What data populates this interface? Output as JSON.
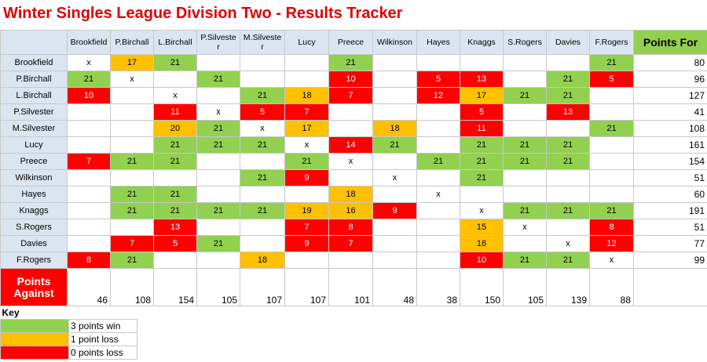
{
  "title": "Winter Singles League Division Two - Results Tracker",
  "table": {
    "columns": [
      "Brookfield",
      "P.Birchall",
      "L.Birchall",
      "P.Silvester",
      "M.Silvester",
      "Lucy",
      "Preece",
      "Wilkinson",
      "Hayes",
      "Knaggs",
      "S.Rogers",
      "Davies",
      "F.Rogers"
    ],
    "points_for_header": "Points For",
    "rows": [
      {
        "label": "Brookfield",
        "cells": [
          "x",
          17,
          21,
          null,
          null,
          null,
          21,
          null,
          null,
          null,
          null,
          null,
          21
        ],
        "fills": [
          null,
          "#ffc000",
          "#92d050",
          null,
          null,
          null,
          "#92d050",
          null,
          null,
          null,
          null,
          null,
          "#92d050"
        ],
        "points_for": 80
      },
      {
        "label": "P.Birchall",
        "cells": [
          21,
          "x",
          null,
          21,
          null,
          null,
          10,
          null,
          5,
          13,
          null,
          21,
          5
        ],
        "fills": [
          "#92d050",
          null,
          null,
          "#92d050",
          null,
          null,
          "#ff0000",
          null,
          "#ff0000",
          "#ff0000",
          null,
          "#92d050",
          "#ff0000"
        ],
        "points_for": 96
      },
      {
        "label": "L.Birchall",
        "cells": [
          10,
          null,
          "x",
          null,
          21,
          18,
          7,
          null,
          12,
          17,
          21,
          21,
          null
        ],
        "fills": [
          "#ff0000",
          null,
          null,
          null,
          "#92d050",
          "#ffc000",
          "#ff0000",
          null,
          "#ff0000",
          "#ffc000",
          "#92d050",
          "#92d050",
          null
        ],
        "points_for": 127
      },
      {
        "label": "P.Silvester",
        "cells": [
          null,
          null,
          11,
          "x",
          5,
          7,
          null,
          null,
          null,
          5,
          null,
          13,
          null
        ],
        "fills": [
          null,
          null,
          "#ff0000",
          null,
          "#ff0000",
          "#ff0000",
          null,
          null,
          null,
          "#ff0000",
          null,
          "#ff0000",
          null
        ],
        "points_for": 41
      },
      {
        "label": "M.Silvester",
        "cells": [
          null,
          null,
          20,
          21,
          "x",
          17,
          null,
          18,
          null,
          11,
          null,
          null,
          21
        ],
        "fills": [
          null,
          null,
          "#ffc000",
          "#92d050",
          null,
          "#ffc000",
          null,
          "#ffc000",
          null,
          "#ff0000",
          null,
          null,
          "#92d050"
        ],
        "points_for": 108
      },
      {
        "label": "Lucy",
        "cells": [
          null,
          null,
          21,
          21,
          21,
          "x",
          14,
          21,
          null,
          21,
          21,
          21,
          null
        ],
        "fills": [
          null,
          null,
          "#92d050",
          "#92d050",
          "#92d050",
          null,
          "#ff0000",
          "#92d050",
          null,
          "#92d050",
          "#92d050",
          "#92d050",
          null
        ],
        "points_for": 161
      },
      {
        "label": "Preece",
        "cells": [
          7,
          21,
          21,
          null,
          null,
          21,
          "x",
          null,
          21,
          21,
          21,
          21,
          null
        ],
        "fills": [
          "#ff0000",
          "#92d050",
          "#92d050",
          null,
          null,
          "#92d050",
          null,
          null,
          "#92d050",
          "#92d050",
          "#92d050",
          "#92d050",
          null
        ],
        "points_for": 154
      },
      {
        "label": "Wilkinson",
        "cells": [
          null,
          null,
          null,
          null,
          21,
          9,
          null,
          "x",
          null,
          21,
          null,
          null,
          null
        ],
        "fills": [
          null,
          null,
          null,
          null,
          "#92d050",
          "#ff0000",
          null,
          null,
          null,
          "#92d050",
          null,
          null,
          null
        ],
        "points_for": 51
      },
      {
        "label": "Hayes",
        "cells": [
          null,
          21,
          21,
          null,
          null,
          null,
          18,
          null,
          "x",
          null,
          null,
          null,
          null
        ],
        "fills": [
          null,
          "#92d050",
          "#92d050",
          null,
          null,
          null,
          "#ffc000",
          null,
          null,
          null,
          null,
          null,
          null
        ],
        "points_for": 60
      },
      {
        "label": "Knaggs",
        "cells": [
          null,
          21,
          21,
          21,
          21,
          19,
          16,
          9,
          null,
          "x",
          21,
          21,
          21
        ],
        "fills": [
          null,
          "#92d050",
          "#92d050",
          "#92d050",
          "#92d050",
          "#ffc000",
          "#ffc000",
          "#ff0000",
          null,
          null,
          "#92d050",
          "#92d050",
          "#92d050"
        ],
        "points_for": 191
      },
      {
        "label": "S.Rogers",
        "cells": [
          null,
          null,
          13,
          null,
          null,
          7,
          8,
          null,
          null,
          15,
          "x",
          null,
          8
        ],
        "fills": [
          null,
          null,
          "#ff0000",
          null,
          null,
          "#ff0000",
          "#ff0000",
          null,
          null,
          "#ffc000",
          null,
          null,
          "#ff0000"
        ],
        "points_for": 51
      },
      {
        "label": "Davies",
        "cells": [
          null,
          7,
          5,
          21,
          null,
          9,
          7,
          null,
          null,
          16,
          null,
          "x",
          12
        ],
        "fills": [
          null,
          "#ff0000",
          "#ff0000",
          "#92d050",
          null,
          "#ff0000",
          "#ff0000",
          null,
          null,
          "#ffc000",
          null,
          null,
          "#ff0000"
        ],
        "points_for": 77
      },
      {
        "label": "F.Rogers",
        "cells": [
          8,
          21,
          null,
          null,
          18,
          null,
          null,
          null,
          null,
          10,
          21,
          21,
          "x"
        ],
        "fills": [
          "#ff0000",
          "#92d050",
          null,
          null,
          "#ffc000",
          null,
          null,
          null,
          null,
          "#ff0000",
          "#92d050",
          "#92d050",
          null
        ],
        "points_for": 99
      }
    ],
    "points_against": {
      "label": "Points Against",
      "values": [
        46,
        108,
        154,
        105,
        107,
        107,
        101,
        48,
        38,
        150,
        105,
        139,
        88
      ]
    }
  },
  "key": {
    "title": "Key",
    "items": [
      {
        "label": "3 points win",
        "color": "#92d050"
      },
      {
        "label": "1 point loss",
        "color": "#ffc000"
      },
      {
        "label": "0 points loss",
        "color": "#ff0000"
      }
    ]
  }
}
